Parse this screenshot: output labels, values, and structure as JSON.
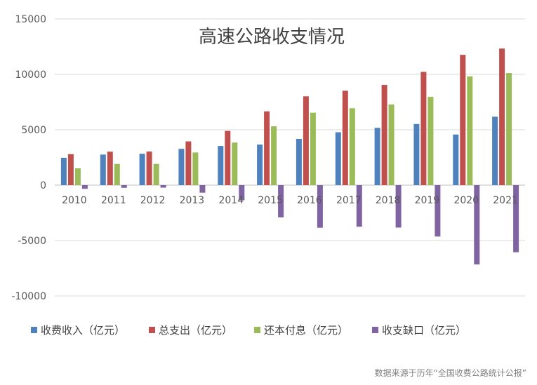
{
  "chart_data": {
    "type": "bar",
    "title": "高速公路收支情况",
    "xlabel": "",
    "ylabel": "",
    "ylim": [
      -10000,
      15000
    ],
    "yticks": [
      15000,
      10000,
      5000,
      0,
      -5000,
      -10000
    ],
    "grid": true,
    "legend_position": "bottom",
    "categories": [
      "2010",
      "2011",
      "2012",
      "2013",
      "2014",
      "2015",
      "2016",
      "2017",
      "2018",
      "2019",
      "2020",
      "2021"
    ],
    "series": [
      {
        "name": "收费收入（亿元）",
        "color": "#4f81bd",
        "values": [
          2470,
          2760,
          2830,
          3270,
          3540,
          3660,
          4180,
          4770,
          5170,
          5520,
          4570,
          6180
        ]
      },
      {
        "name": "总支出（亿元）",
        "color": "#c0504d",
        "values": [
          2800,
          3020,
          3030,
          3950,
          4900,
          6660,
          8020,
          8520,
          9050,
          10220,
          11760,
          12330
        ]
      },
      {
        "name": "还本付息（亿元）",
        "color": "#9bbb59",
        "values": [
          1520,
          1920,
          1920,
          2950,
          3840,
          5310,
          6540,
          6940,
          7280,
          7970,
          9810,
          10120
        ]
      },
      {
        "name": "收支缺口（亿元）",
        "color": "#8064a2",
        "values": [
          -330,
          -240,
          -230,
          -680,
          -1360,
          -2910,
          -3840,
          -3750,
          -3830,
          -4640,
          -7160,
          -6060
        ]
      }
    ]
  },
  "source_note": "数据来源于历年“全国收费公路统计公报”"
}
